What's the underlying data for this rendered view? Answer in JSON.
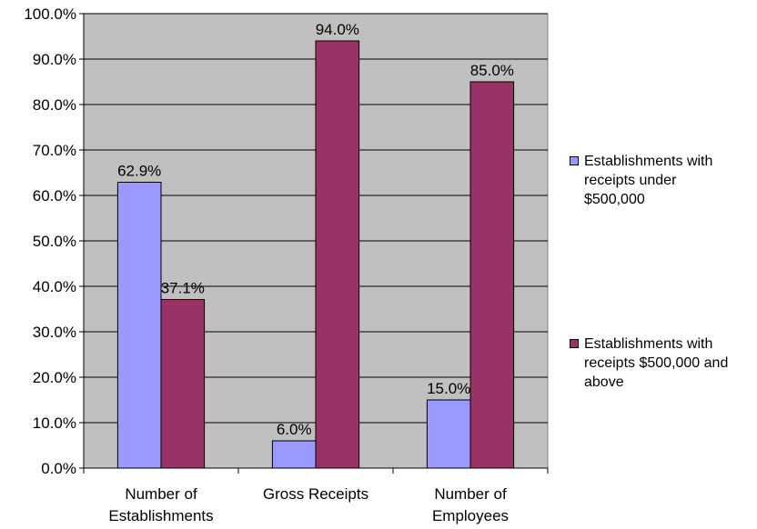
{
  "chart_data": {
    "type": "bar",
    "categories": [
      [
        "Number of",
        "Establishments"
      ],
      [
        "Gross Receipts"
      ],
      [
        "Number of",
        "Employees"
      ]
    ],
    "series": [
      {
        "name": "Establishments with receipts under $500,000",
        "legend_lines": [
          "Establishments with",
          "receipts under",
          "$500,000"
        ],
        "color": "#9999FF",
        "values": [
          62.9,
          6.0,
          15.0
        ],
        "labels": [
          "62.9%",
          "6.0%",
          "15.0%"
        ]
      },
      {
        "name": "Establishments with receipts $500,000 and above",
        "legend_lines": [
          "Establishments with",
          "receipts $500,000 and",
          "above"
        ],
        "color": "#993366",
        "values": [
          37.1,
          94.0,
          85.0
        ],
        "labels": [
          "37.1%",
          "94.0%",
          "85.0%"
        ]
      }
    ],
    "ylim": [
      0,
      100
    ],
    "yticks": [
      "0.0%",
      "10.0%",
      "20.0%",
      "30.0%",
      "40.0%",
      "50.0%",
      "60.0%",
      "70.0%",
      "80.0%",
      "90.0%",
      "100.0%"
    ],
    "plot_background": "#C0C0C0",
    "grid": true,
    "legend_position": "right"
  }
}
